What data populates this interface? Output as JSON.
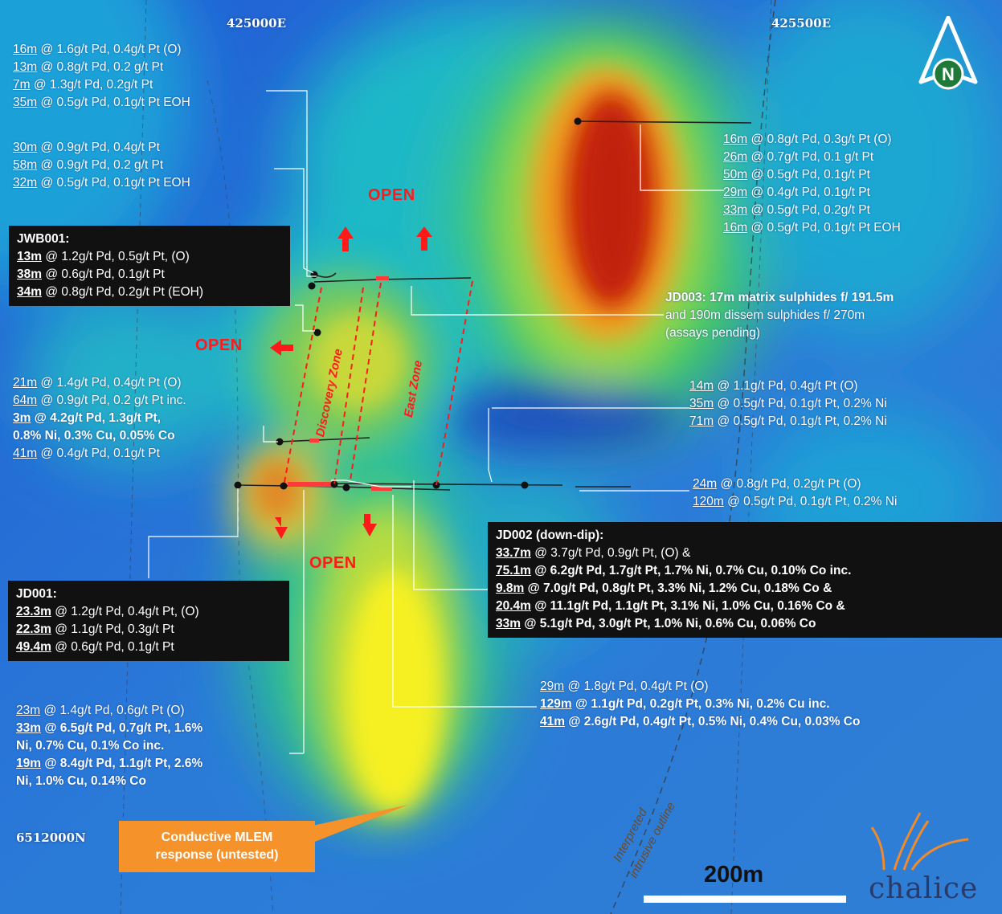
{
  "grid": {
    "easting_1": "425000E",
    "easting_2": "425500E",
    "northing": "6512000N"
  },
  "north_arrow": {
    "label": "N"
  },
  "annotations": {
    "nw1": [
      {
        "interval": "16m",
        "text": " @ 1.6g/t Pd, 0.4g/t Pt (O)"
      },
      {
        "interval": "13m",
        "text": " @  0.8g/t Pd, 0.2 g/t Pt"
      },
      {
        "interval": "7m",
        "text": " @ 1.3g/t Pd, 0.2g/t Pt"
      },
      {
        "interval": "35m",
        "text": " @ 0.5g/t Pd, 0.1g/t Pt EOH"
      }
    ],
    "nw2": [
      {
        "interval": "30m",
        "text": " @ 0.9g/t Pd, 0.4g/t Pt"
      },
      {
        "interval": "58m",
        "text": " @  0.9g/t Pd, 0.2 g/t Pt"
      },
      {
        "interval": "32m",
        "text": " @ 0.5g/t Pd, 0.1g/t Pt EOH"
      }
    ],
    "ne1": [
      {
        "interval": "16m",
        "text": " @ 0.8g/t Pd, 0.3g/t Pt (O)"
      },
      {
        "interval": "26m",
        "text": " @  0.7g/t Pd, 0.1 g/t Pt"
      },
      {
        "interval": "50m",
        "text": " @ 0.5g/t Pd, 0.1g/t Pt"
      },
      {
        "interval": "29m",
        "text": " @ 0.4g/t Pd, 0.1g/t Pt"
      },
      {
        "interval": "33m",
        "text": " @ 0.5g/t Pd, 0.2g/t Pt"
      },
      {
        "interval": "16m",
        "text": " @ 0.5g/t Pd, 0.1g/t Pt EOH"
      }
    ],
    "jd003": {
      "line1": "JD003: 17m matrix sulphides f/ 191.5m",
      "line2": "and 190m dissem sulphides f/ 270m",
      "line3": "(assays pending)"
    },
    "w_mid": [
      {
        "interval": "21m",
        "text": " @ 1.4g/t Pd, 0.4g/t Pt (O)",
        "bold": false
      },
      {
        "interval": "64m",
        "text": " @ 0.9g/t Pd, 0.2 g/t Pt inc.",
        "bold": false
      },
      {
        "interval": "3m",
        "text": " @ 4.2g/t Pd, 1.3g/t Pt,",
        "bold": true
      },
      {
        "interval": "",
        "text": "0.8% Ni, 0.3% Cu, 0.05% Co",
        "bold": true
      },
      {
        "interval": "41m",
        "text": " @ 0.4g/t Pd, 0.1g/t Pt",
        "bold": false
      }
    ],
    "e_mid": [
      {
        "interval": "14m",
        "text": " @ 1.1g/t Pd, 0.4g/t Pt (O)"
      },
      {
        "interval": "35m",
        "text": " @ 0.5g/t Pd, 0.1g/t Pt, 0.2% Ni"
      },
      {
        "interval": "71m",
        "text": " @ 0.5g/t Pd, 0.1g/t Pt, 0.2% Ni"
      }
    ],
    "e_low": [
      {
        "interval": "24m",
        "text": " @ 0.8g/t Pd, 0.2g/t Pt (O)"
      },
      {
        "interval": "120m",
        "text": " @ 0.5g/t Pd, 0.1g/t Pt, 0.2% Ni"
      }
    ],
    "s_centre": [
      {
        "interval": "29m",
        "text": " @ 1.8g/t Pd, 0.4g/t Pt (O)",
        "bold": false
      },
      {
        "interval": "129m",
        "text": " @ 1.1g/t Pd, 0.2g/t Pt, 0.3% Ni, 0.2% Cu inc.",
        "bold": true
      },
      {
        "interval": "41m",
        "text": " @ 2.6g/t Pd, 0.4g/t Pt, 0.5% Ni, 0.4% Cu, 0.03% Co",
        "bold": true
      }
    ],
    "sw": [
      {
        "interval": "23m",
        "text": " @ 1.4g/t Pd, 0.6g/t Pt (O)",
        "bold": false
      },
      {
        "interval": "33m",
        "text": " @ 6.5g/t Pd, 0.7g/t Pt, 1.6%",
        "bold": true
      },
      {
        "interval": "",
        "text": "Ni, 0.7% Cu, 0.1% Co inc.",
        "bold": true
      },
      {
        "interval": "19m",
        "text": " @ 8.4g/t Pd, 1.1g/t Pt, 2.6%",
        "bold": true
      },
      {
        "interval": "",
        "text": "Ni, 1.0% Cu, 0.14% Co",
        "bold": true
      }
    ]
  },
  "boxes": {
    "jwb001": {
      "title": "JWB001:",
      "rows": [
        {
          "interval": "13m",
          "text": " @ 1.2g/t Pd, 0.5g/t Pt, (O)"
        },
        {
          "interval": "38m",
          "text": " @ 0.6g/t Pd, 0.1g/t Pt"
        },
        {
          "interval": "34m",
          "text": " @ 0.8g/t Pd, 0.2g/t Pt (EOH)"
        }
      ]
    },
    "jd001": {
      "title": "JD001:",
      "rows": [
        {
          "interval": "23.3m",
          "text": " @ 1.2g/t Pd, 0.4g/t Pt, (O)"
        },
        {
          "interval": "22.3m",
          "text": " @ 1.1g/t Pd, 0.3g/t Pt"
        },
        {
          "interval": "49.4m",
          "text": " @ 0.6g/t Pd, 0.1g/t Pt"
        }
      ]
    },
    "jd002": {
      "title": "JD002 (down-dip):",
      "rows": [
        {
          "interval": "33.7m",
          "text": " @ 3.7g/t Pd, 0.9g/t Pt, (O) &",
          "bold": false
        },
        {
          "interval": "75.1m",
          "text": " @ 6.2g/t Pd, 1.7g/t Pt, 1.7% Ni, 0.7% Cu, 0.10% Co inc.",
          "bold": true
        },
        {
          "interval": "9.8m",
          "text": " @ 7.0g/t Pd, 0.8g/t Pt, 3.3% Ni, 1.2% Cu, 0.18% Co &",
          "bold": true
        },
        {
          "interval": "20.4m",
          "text": " @ 11.1g/t Pd, 1.1g/t Pt, 3.1% Ni, 1.0% Cu, 0.16% Co &",
          "bold": true
        },
        {
          "interval": "33m",
          "text": " @ 5.1g/t Pd, 3.0g/t Pt, 1.0% Ni, 0.6% Cu, 0.06% Co",
          "bold": true
        }
      ]
    }
  },
  "labels": {
    "open_label": "OPEN",
    "discovery_zone": "Discovery Zone",
    "east_zone": "East Zone",
    "outline_1": "Interpreted",
    "outline_2": "intrusive outline",
    "em_callout_1": "Conductive MLEM",
    "em_callout_2": "response (untested)",
    "scale": "200m",
    "logo": "chalice"
  },
  "colors": {
    "open_red": "#ff1a1a",
    "callout_orange": "#f5922a",
    "box_black": "#111111",
    "logo_navy": "#2a3b6a",
    "logo_orange": "#f08a2a"
  }
}
